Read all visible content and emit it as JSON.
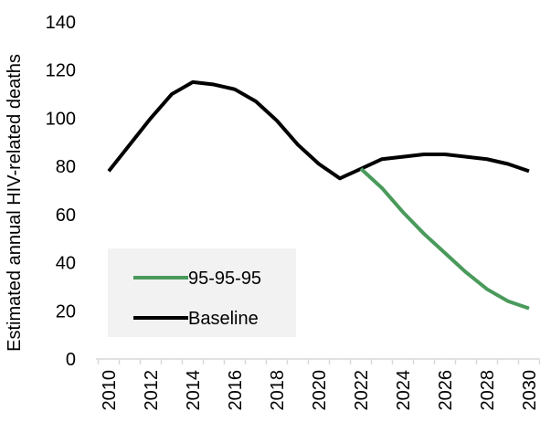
{
  "chart_data": {
    "type": "line",
    "title": "",
    "xlabel": "",
    "ylabel": "Estimated annual HIV-related deaths",
    "xlim": [
      2010,
      2030
    ],
    "ylim": [
      0,
      140
    ],
    "x_ticks": [
      "2010",
      "2012",
      "2014",
      "2016",
      "2018",
      "2020",
      "2022",
      "2024",
      "2026",
      "2028",
      "2030"
    ],
    "y_ticks": [
      "0",
      "20",
      "40",
      "60",
      "80",
      "100",
      "120",
      "140"
    ],
    "grid": false,
    "legend_position": "bottom-left",
    "legend_background": "#f2f2f2",
    "series": [
      {
        "name": "95-95-95",
        "color": "#4a9a5c",
        "x": [
          2022,
          2023,
          2024,
          2025,
          2026,
          2027,
          2028,
          2029,
          2030
        ],
        "y": [
          79,
          71,
          61,
          52,
          44,
          36,
          29,
          24,
          21
        ]
      },
      {
        "name": "Baseline",
        "color": "#000000",
        "x": [
          2010,
          2011,
          2012,
          2013,
          2014,
          2015,
          2016,
          2017,
          2018,
          2019,
          2020,
          2021,
          2022,
          2023,
          2024,
          2025,
          2026,
          2027,
          2028,
          2029,
          2030
        ],
        "y": [
          78,
          89,
          100,
          110,
          115,
          114,
          112,
          107,
          99,
          89,
          81,
          75,
          79,
          83,
          84,
          85,
          85,
          84,
          83,
          81,
          78
        ]
      }
    ]
  }
}
